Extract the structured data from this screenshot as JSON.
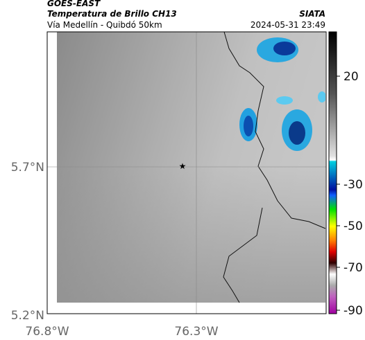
{
  "header": {
    "title": "GOES-EAST",
    "subtitle": "Temperatura de Brillo CH13",
    "route": "Vía Medellín - Quibdó 50km",
    "source": "SIATA",
    "timestamp": "2024-05-31 23:49"
  },
  "map": {
    "lat_labels": [
      "5.7°N",
      "5.2°N"
    ],
    "lon_labels": [
      "76.8°W",
      "76.3°W"
    ]
  },
  "colorbar": {
    "ticks": [
      "20",
      "-30",
      "-50",
      "-70",
      "-90"
    ]
  }
}
